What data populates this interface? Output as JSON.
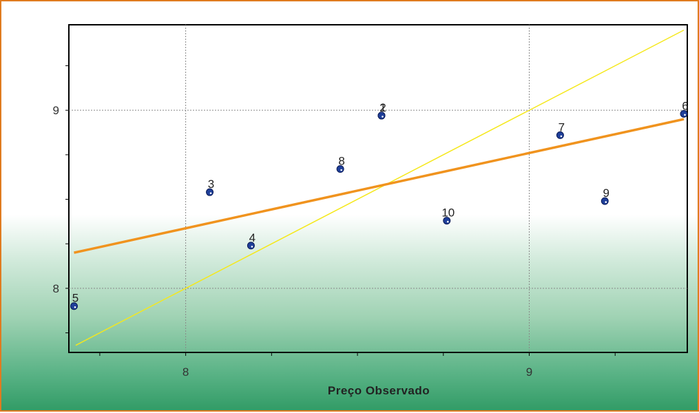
{
  "chart_data": {
    "type": "scatter",
    "title": "",
    "xlabel": "Preço Observado",
    "ylabel": "",
    "xlim": [
      7.66,
      9.46
    ],
    "ylim": [
      7.64,
      9.48
    ],
    "x_ticks": [
      8,
      9
    ],
    "x_tick_labels": [
      "8",
      "9"
    ],
    "y_ticks": [
      8,
      9
    ],
    "y_tick_labels": [
      "8",
      "9"
    ],
    "grid": true,
    "points": [
      {
        "label": "1",
        "x": 8.57,
        "y": 8.97
      },
      {
        "label": "2",
        "x": 8.57,
        "y": 8.97
      },
      {
        "label": "3",
        "x": 8.07,
        "y": 8.54
      },
      {
        "label": "4",
        "x": 8.19,
        "y": 8.24
      },
      {
        "label": "5",
        "x": 7.675,
        "y": 7.9
      },
      {
        "label": "6",
        "x": 9.45,
        "y": 8.98
      },
      {
        "label": "7",
        "x": 9.09,
        "y": 8.86
      },
      {
        "label": "8",
        "x": 8.45,
        "y": 8.67
      },
      {
        "label": "9",
        "x": 9.22,
        "y": 8.49
      },
      {
        "label": "10",
        "x": 8.76,
        "y": 8.38
      }
    ],
    "regression_line": {
      "x": [
        7.675,
        9.45
      ],
      "y": [
        8.2,
        8.95
      ],
      "color": "#f0931e"
    },
    "identity_line": {
      "x": [
        7.68,
        9.45
      ],
      "y": [
        7.68,
        9.45
      ],
      "color": "#f5e81c"
    },
    "point_color": "#1f3f9a"
  }
}
